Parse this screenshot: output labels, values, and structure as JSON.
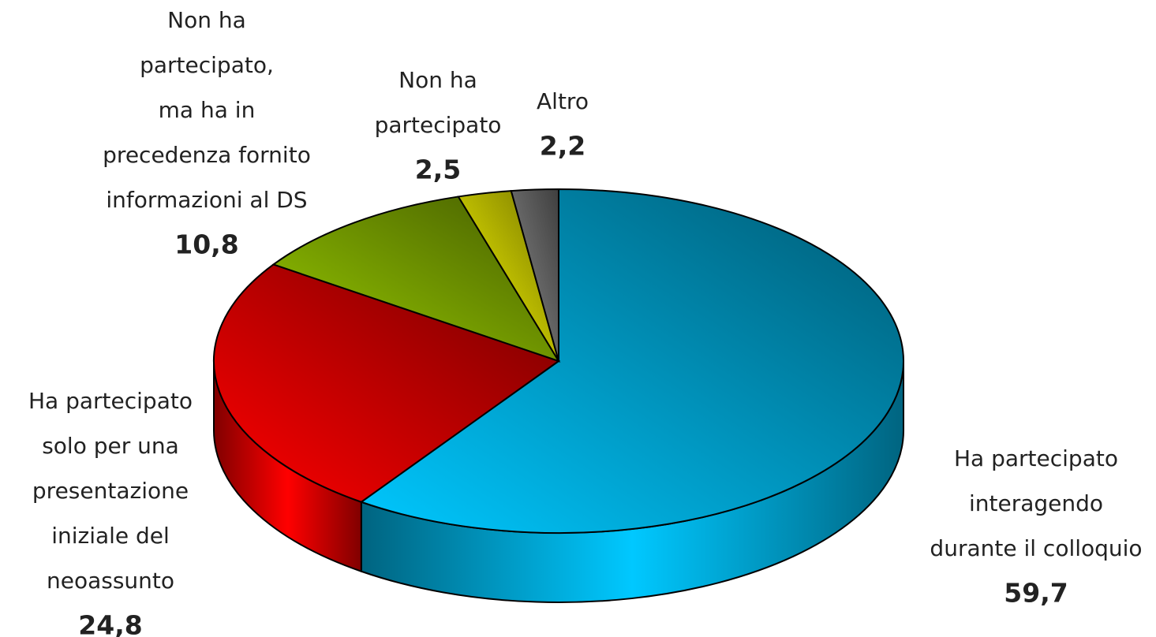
{
  "chart_data": {
    "type": "pie3d",
    "categories": [
      [
        "Ha partecipato",
        "interagendo",
        "durante il colloquio"
      ],
      [
        "Ha partecipato",
        "solo per una",
        "presentazione",
        "iniziale del",
        "neoassunto"
      ],
      [
        "Non ha",
        "partecipato,",
        "ma ha in",
        "precedenza fornito",
        "informazioni al DS"
      ],
      [
        "Non ha",
        "partecipato"
      ],
      [
        "Altro"
      ]
    ],
    "values": [
      59.7,
      24.8,
      10.8,
      2.5,
      2.2
    ],
    "value_labels": [
      "59,7",
      "24,8",
      "10,8",
      "2,5",
      "2,2"
    ],
    "colors": [
      "#00c8ff",
      "#ff0000",
      "#99cc00",
      "#ffff00",
      "#8c8c8c"
    ]
  }
}
